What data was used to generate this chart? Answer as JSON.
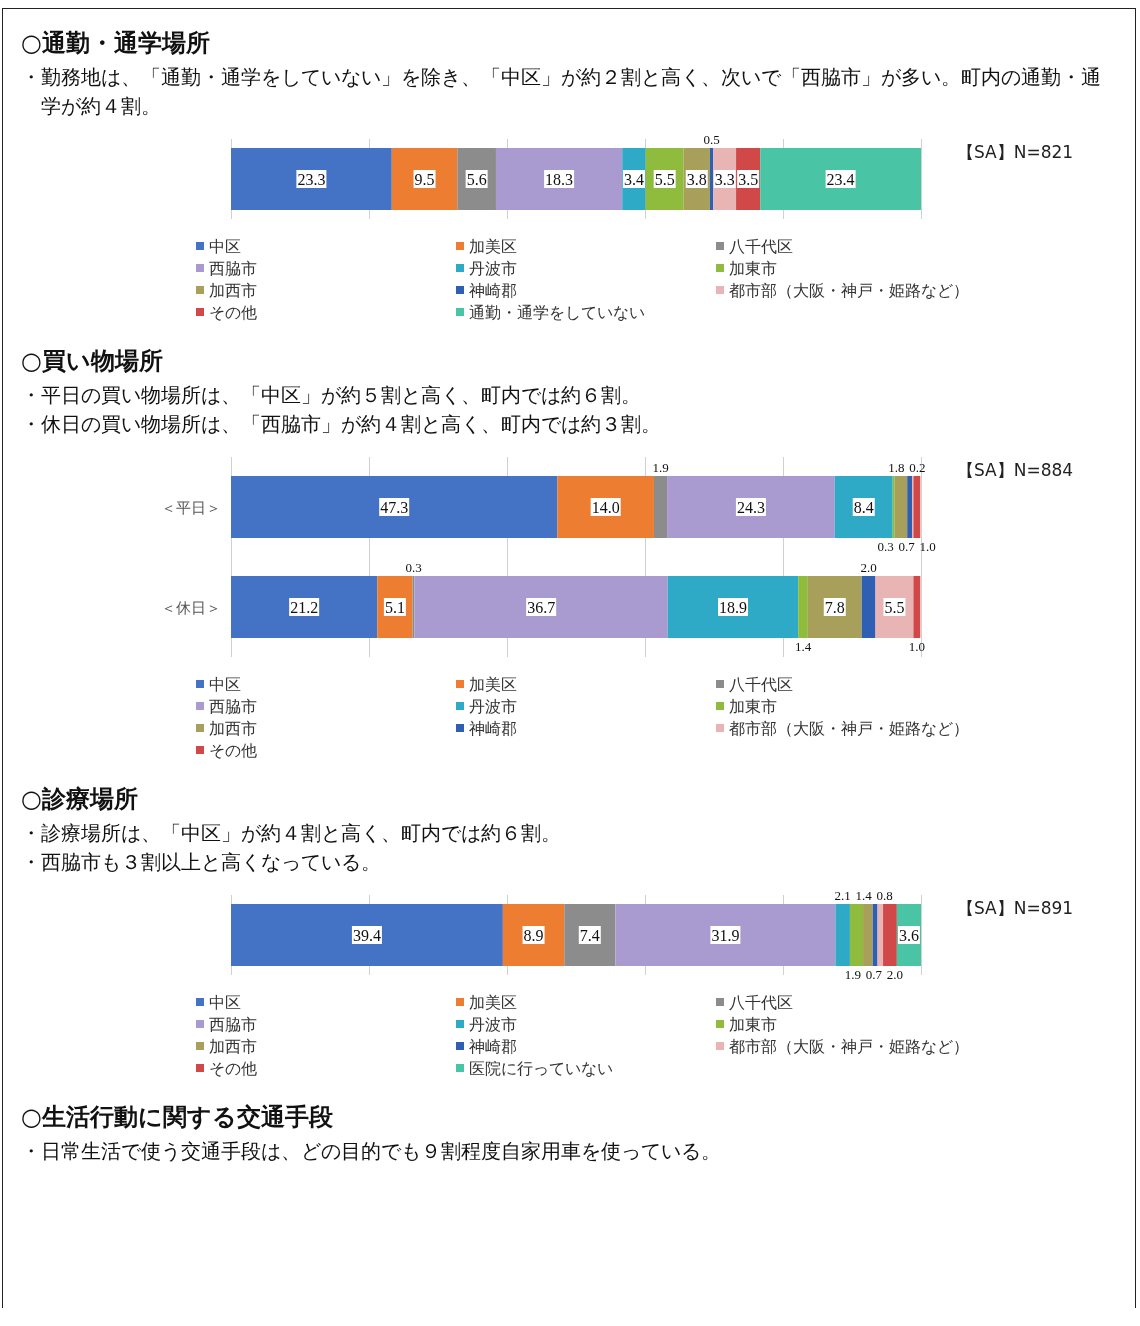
{
  "chart_data": [
    {
      "type": "bar",
      "orientation": "horizontal",
      "stacked": true,
      "title": "○通勤・通学場所",
      "subtitle": "・勤務地は、「通勤・通学をしていない」を除き、「中区」が約２割と高く、次いで「西脇市」が多い。町内の通勤・通学が約４割。",
      "annotations": [
        "【SA】N=821"
      ],
      "categories": [
        null
      ],
      "xlim": [
        0,
        100
      ],
      "xticks": [
        {
          "value": 0,
          "label": null
        },
        {
          "value": 20,
          "label": null
        },
        {
          "value": 40,
          "label": null
        },
        {
          "value": 60,
          "label": null
        },
        {
          "value": 80,
          "label": null
        },
        {
          "value": 100,
          "label": null
        }
      ],
      "tick_labels": false,
      "grid": "x",
      "legend": "bottom",
      "series": [
        {
          "name": "中区",
          "color": "#4472c4",
          "values": [
            23.3
          ],
          "value_labels": [
            "23.3"
          ]
        },
        {
          "name": "加美区",
          "color": "#ed7d31",
          "values": [
            9.5
          ],
          "value_labels": [
            "9.5"
          ]
        },
        {
          "name": "八千代区",
          "color": "#8c8c8c",
          "values": [
            5.6
          ],
          "value_labels": [
            "5.6"
          ]
        },
        {
          "name": "西脇市",
          "color": "#a99bd0",
          "values": [
            18.3
          ],
          "value_labels": [
            "18.3"
          ]
        },
        {
          "name": "丹波市",
          "color": "#2ea9c6",
          "values": [
            3.4
          ],
          "value_labels": [
            "3.4"
          ]
        },
        {
          "name": "加東市",
          "color": "#8fbc3c",
          "values": [
            5.5
          ],
          "value_labels": [
            "5.5"
          ]
        },
        {
          "name": "加西市",
          "color": "#a89f5a",
          "values": [
            3.8
          ],
          "value_labels": [
            "3.8"
          ]
        },
        {
          "name": "神崎郡",
          "color": "#2f5fb3",
          "values": [
            0.5
          ],
          "value_labels": [
            "0.5"
          ]
        },
        {
          "name": "都市部（大阪・神戸・姫路など）",
          "color": "#e8b4b4",
          "values": [
            3.3
          ],
          "value_labels": [
            "3.3"
          ]
        },
        {
          "name": "その他",
          "color": "#d04848",
          "values": [
            3.5
          ],
          "value_labels": [
            "3.5"
          ]
        },
        {
          "name": "通勤・通学をしていない",
          "color": "#49c4a4",
          "values": [
            23.4
          ],
          "value_labels": [
            "23.4"
          ]
        }
      ]
    },
    {
      "type": "bar",
      "orientation": "horizontal",
      "stacked": true,
      "title": "○買い物場所",
      "subtitle": "・平日の買い物場所は、「中区」が約５割と高く、町内では約６割。",
      "annotations": [
        "・休日の買い物場所は、「西脇市」が約４割と高く、町内では約３割。",
        "【SA】N=884"
      ],
      "categories": [
        "＜平日＞",
        "＜休日＞"
      ],
      "xlim": [
        0,
        100
      ],
      "xticks": [
        {
          "value": 0,
          "label": null
        },
        {
          "value": 20,
          "label": null
        },
        {
          "value": 40,
          "label": null
        },
        {
          "value": 60,
          "label": null
        },
        {
          "value": 80,
          "label": null
        },
        {
          "value": 100,
          "label": null
        }
      ],
      "tick_labels": "y",
      "grid": "x",
      "legend": "bottom",
      "series": [
        {
          "name": "中区",
          "color": "#4472c4",
          "values": [
            47.3,
            21.2
          ],
          "value_labels": [
            "47.3",
            "21.2"
          ]
        },
        {
          "name": "加美区",
          "color": "#ed7d31",
          "values": [
            14.0,
            5.1
          ],
          "value_labels": [
            "14.0",
            "5.1"
          ]
        },
        {
          "name": "八千代区",
          "color": "#8c8c8c",
          "values": [
            1.9,
            0.3
          ],
          "value_labels": [
            "1.9",
            "0.3"
          ]
        },
        {
          "name": "西脇市",
          "color": "#a99bd0",
          "values": [
            24.3,
            36.7
          ],
          "value_labels": [
            "24.3",
            "36.7"
          ]
        },
        {
          "name": "丹波市",
          "color": "#2ea9c6",
          "values": [
            8.4,
            18.9
          ],
          "value_labels": [
            "8.4",
            "18.9"
          ]
        },
        {
          "name": "加東市",
          "color": "#8fbc3c",
          "values": [
            0.3,
            1.4
          ],
          "value_labels": [
            "0.3",
            "1.4"
          ]
        },
        {
          "name": "加西市",
          "color": "#a89f5a",
          "values": [
            1.8,
            7.8
          ],
          "value_labels": [
            "1.8",
            "7.8"
          ]
        },
        {
          "name": "神崎郡",
          "color": "#2f5fb3",
          "values": [
            0.7,
            2.0
          ],
          "value_labels": [
            "0.7",
            "2.0"
          ]
        },
        {
          "name": "都市部（大阪・神戸・姫路など）",
          "color": "#e8b4b4",
          "values": [
            0.2,
            5.5
          ],
          "value_labels": [
            "0.2",
            "5.5"
          ]
        },
        {
          "name": "その他",
          "color": "#d04848",
          "values": [
            1.0,
            1.0
          ],
          "value_labels": [
            "1.0",
            "1.0"
          ]
        }
      ]
    },
    {
      "type": "bar",
      "orientation": "horizontal",
      "stacked": true,
      "title": "○診療場所",
      "subtitle": "・診療場所は、「中区」が約４割と高く、町内では約６割。",
      "annotations": [
        "・西脇市も３割以上と高くなっている。",
        "【SA】N=891"
      ],
      "categories": [
        null
      ],
      "xlim": [
        0,
        100
      ],
      "xticks": [
        {
          "value": 0,
          "label": null
        },
        {
          "value": 20,
          "label": null
        },
        {
          "value": 40,
          "label": null
        },
        {
          "value": 60,
          "label": null
        },
        {
          "value": 80,
          "label": null
        },
        {
          "value": 100,
          "label": null
        }
      ],
      "tick_labels": false,
      "grid": "x",
      "legend": "bottom",
      "series": [
        {
          "name": "中区",
          "color": "#4472c4",
          "values": [
            39.4
          ],
          "value_labels": [
            "39.4"
          ]
        },
        {
          "name": "加美区",
          "color": "#ed7d31",
          "values": [
            8.9
          ],
          "value_labels": [
            "8.9"
          ]
        },
        {
          "name": "八千代区",
          "color": "#8c8c8c",
          "values": [
            7.4
          ],
          "value_labels": [
            "7.4"
          ]
        },
        {
          "name": "西脇市",
          "color": "#a99bd0",
          "values": [
            31.9
          ],
          "value_labels": [
            "31.9"
          ]
        },
        {
          "name": "丹波市",
          "color": "#2ea9c6",
          "values": [
            2.1
          ],
          "value_labels": [
            "2.1"
          ]
        },
        {
          "name": "加東市",
          "color": "#8fbc3c",
          "values": [
            1.9
          ],
          "value_labels": [
            "1.9"
          ]
        },
        {
          "name": "加西市",
          "color": "#a89f5a",
          "values": [
            1.4
          ],
          "value_labels": [
            "1.4"
          ]
        },
        {
          "name": "神崎郡",
          "color": "#2f5fb3",
          "values": [
            0.7
          ],
          "value_labels": [
            "0.7"
          ]
        },
        {
          "name": "都市部（大阪・神戸・姫路など）",
          "color": "#e8b4b4",
          "values": [
            0.8
          ],
          "value_labels": [
            "0.8"
          ]
        },
        {
          "name": "その他",
          "color": "#d04848",
          "values": [
            2.0
          ],
          "value_labels": [
            "2.0"
          ]
        },
        {
          "name": "医院に行っていない",
          "color": "#49c4a4",
          "values": [
            3.6
          ],
          "value_labels": [
            "3.6"
          ]
        }
      ]
    },
    {
      "type": "other",
      "title": "○生活行動に関する交通手段",
      "annotations": [
        "・日常生活で使う交通手段は、どの目的でも９割程度自家用車を使っている。"
      ]
    }
  ]
}
